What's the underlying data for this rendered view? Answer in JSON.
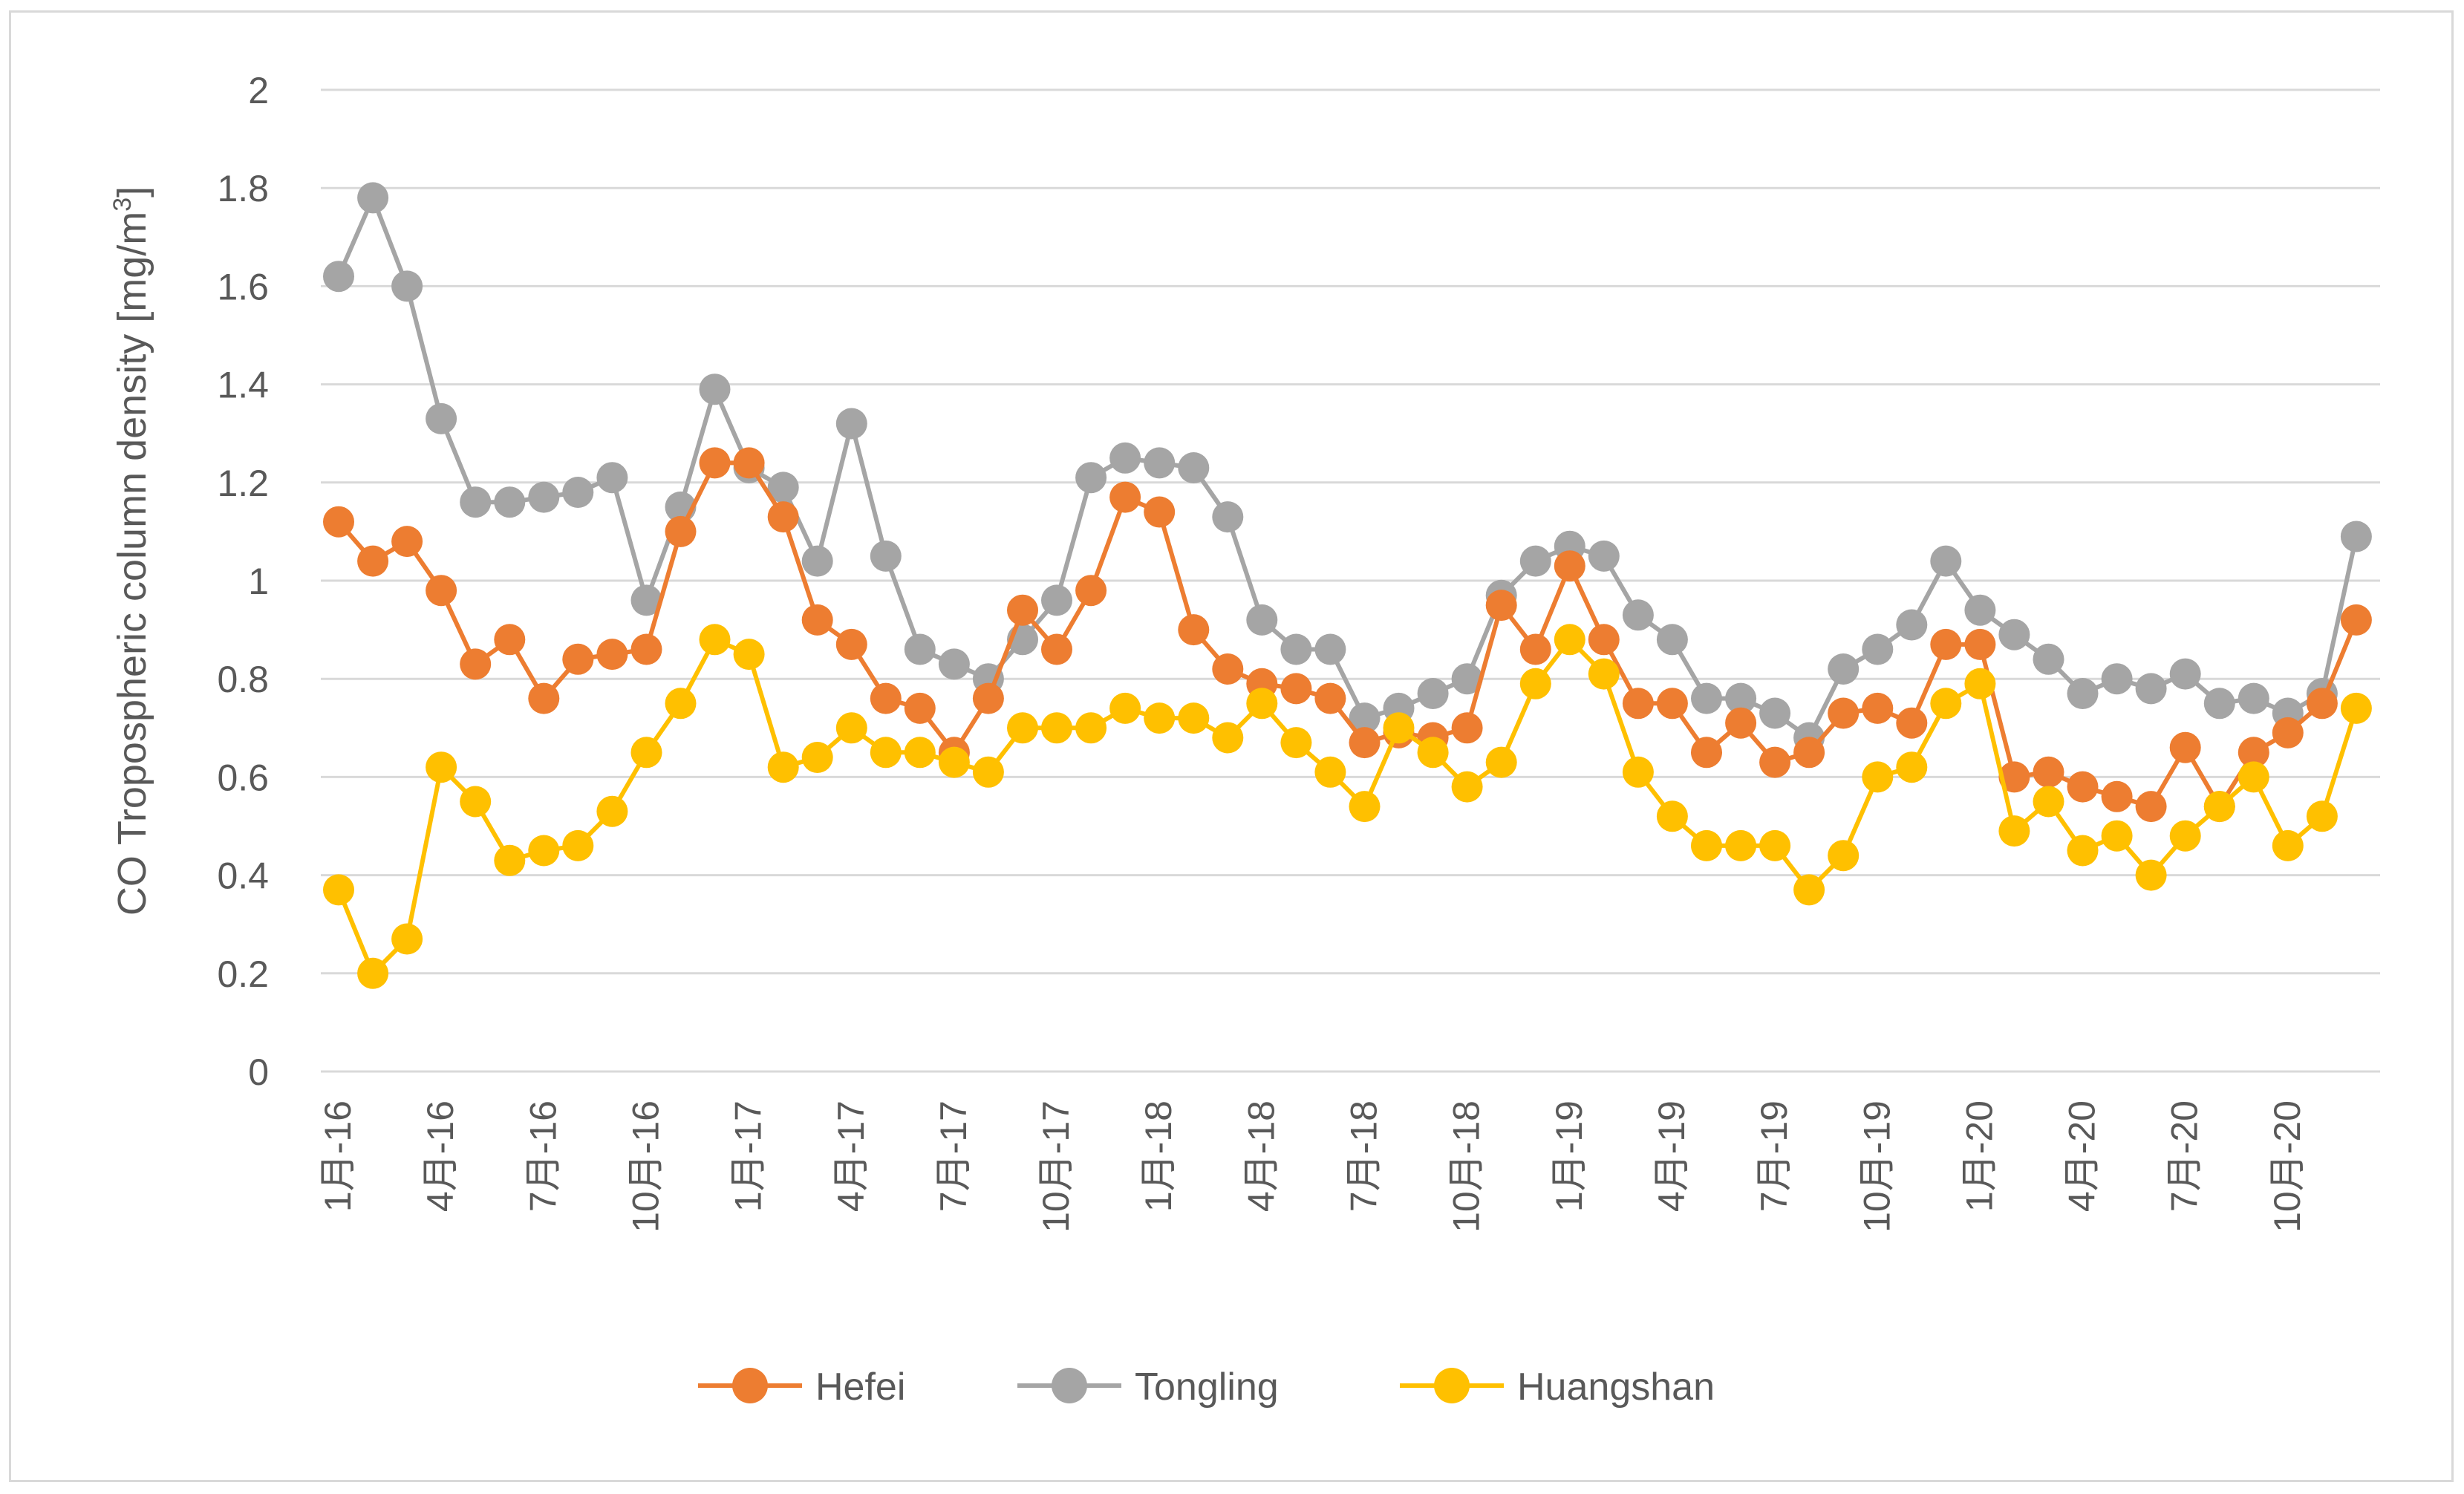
{
  "chart_data": {
    "type": "line",
    "title": "",
    "xlabel": "",
    "ylabel": "CO Tropospheric column density [mg/m",
    "ylabel_superscript": "3",
    "ylabel_suffix": "]",
    "ylim": [
      0,
      2
    ],
    "y_ticks": [
      0,
      0.2,
      0.4,
      0.6,
      0.8,
      1,
      1.2,
      1.4,
      1.6,
      1.8,
      2
    ],
    "y_tick_labels": [
      "0",
      "0.2",
      "0.4",
      "0.6",
      "0.8",
      "1",
      "1.2",
      "1.4",
      "1.6",
      "1.8",
      "2"
    ],
    "grid": true,
    "legend_position": "bottom",
    "x_tick_labels": [
      {
        "index": 0,
        "label": "1月-16"
      },
      {
        "index": 3,
        "label": "4月-16"
      },
      {
        "index": 6,
        "label": "7月-16"
      },
      {
        "index": 9,
        "label": "10月-16"
      },
      {
        "index": 12,
        "label": "1月-17"
      },
      {
        "index": 15,
        "label": "4月-17"
      },
      {
        "index": 18,
        "label": "7月-17"
      },
      {
        "index": 21,
        "label": "10月-17"
      },
      {
        "index": 24,
        "label": "1月-18"
      },
      {
        "index": 27,
        "label": "4月-18"
      },
      {
        "index": 30,
        "label": "7月-18"
      },
      {
        "index": 33,
        "label": "10月-18"
      },
      {
        "index": 36,
        "label": "1月-19"
      },
      {
        "index": 39,
        "label": "4月-19"
      },
      {
        "index": 42,
        "label": "7月-19"
      },
      {
        "index": 45,
        "label": "10月-19"
      },
      {
        "index": 48,
        "label": "1月-20"
      },
      {
        "index": 51,
        "label": "4月-20"
      },
      {
        "index": 54,
        "label": "7月-20"
      },
      {
        "index": 57,
        "label": "10月-20"
      }
    ],
    "n_points": 60,
    "series": [
      {
        "name": "Tongling",
        "color": "#a5a5a5",
        "values": [
          1.62,
          1.78,
          1.6,
          1.33,
          1.16,
          1.16,
          1.17,
          1.18,
          1.21,
          0.96,
          1.15,
          1.39,
          1.23,
          1.19,
          1.04,
          1.32,
          1.05,
          0.86,
          0.83,
          0.8,
          0.88,
          0.96,
          1.21,
          1.25,
          1.24,
          1.23,
          1.13,
          0.92,
          0.86,
          0.86,
          0.72,
          0.74,
          0.77,
          0.8,
          0.97,
          1.04,
          1.07,
          1.05,
          0.93,
          0.88,
          0.76,
          0.76,
          0.73,
          0.68,
          0.82,
          0.86,
          0.91,
          1.04,
          0.94,
          0.89,
          0.84,
          0.77,
          0.8,
          0.78,
          0.81,
          0.75,
          0.76,
          0.73,
          0.77,
          1.09
        ]
      },
      {
        "name": "Hefei",
        "color": "#ed7d31",
        "values": [
          1.12,
          1.04,
          1.08,
          0.98,
          0.83,
          0.88,
          0.76,
          0.84,
          0.85,
          0.86,
          1.1,
          1.24,
          1.24,
          1.13,
          0.92,
          0.87,
          0.76,
          0.74,
          0.65,
          0.76,
          0.94,
          0.86,
          0.98,
          1.17,
          1.14,
          0.9,
          0.82,
          0.79,
          0.78,
          0.76,
          0.67,
          0.69,
          0.68,
          0.7,
          0.95,
          0.86,
          1.03,
          0.88,
          0.75,
          0.75,
          0.65,
          0.71,
          0.63,
          0.65,
          0.73,
          0.74,
          0.71,
          0.87,
          0.87,
          0.6,
          0.61,
          0.58,
          0.56,
          0.54,
          0.66,
          0.54,
          0.65,
          0.69,
          0.75,
          0.92
        ]
      },
      {
        "name": "Huangshan",
        "color": "#ffc000",
        "values": [
          0.37,
          0.2,
          0.27,
          0.62,
          0.55,
          0.43,
          0.45,
          0.46,
          0.53,
          0.65,
          0.75,
          0.88,
          0.85,
          0.62,
          0.64,
          0.7,
          0.65,
          0.65,
          0.63,
          0.61,
          0.7,
          0.7,
          0.7,
          0.74,
          0.72,
          0.72,
          0.68,
          0.75,
          0.67,
          0.61,
          0.54,
          0.7,
          0.65,
          0.58,
          0.63,
          0.79,
          0.88,
          0.81,
          0.61,
          0.52,
          0.46,
          0.46,
          0.46,
          0.37,
          0.44,
          0.6,
          0.62,
          0.75,
          0.79,
          0.49,
          0.55,
          0.45,
          0.48,
          0.4,
          0.48,
          0.54,
          0.6,
          0.46,
          0.52,
          0.74
        ]
      }
    ],
    "legend_order": [
      "Hefei",
      "Tongling",
      "Huangshan"
    ]
  }
}
